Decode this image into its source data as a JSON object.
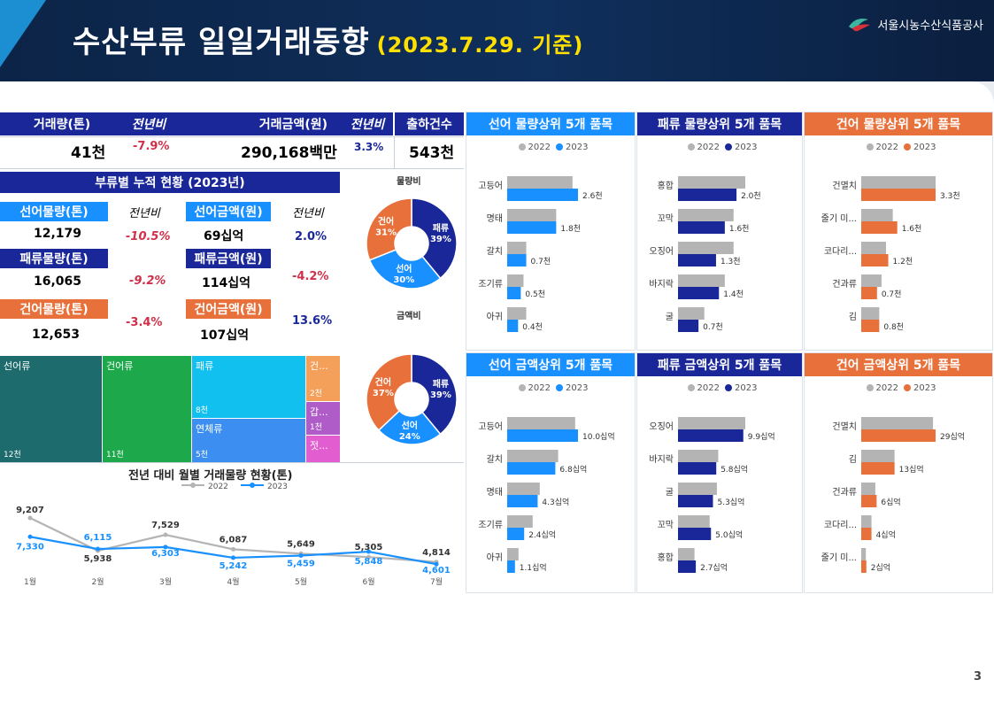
{
  "header": {
    "title": "수산부류 일일거래동향",
    "date": "(2023.7.29. 기준)",
    "org": "서울시농수산식품공사"
  },
  "summary": {
    "volume_label": "거래량(톤)",
    "volume_yoy_label": "전년비",
    "volume_value": "41천",
    "volume_yoy": "-7.9%",
    "amount_label": "거래금액(원)",
    "amount_yoy_label": "전년비",
    "amount_value": "290,168백만",
    "amount_yoy": "3.3%",
    "shipments_label": "출하건수",
    "shipments_value": "543천"
  },
  "cumulative": {
    "title": "부류별 누적 현황 (2023년)",
    "yoy_label": "전년비",
    "fresh_vol_label": "선어물량(톤)",
    "fresh_vol": "12,179",
    "fresh_vol_yoy": "-10.5%",
    "fresh_amt_label": "선어금액(원)",
    "fresh_amt": "69십억",
    "fresh_amt_yoy": "2.0%",
    "shell_vol_label": "패류물량(톤)",
    "shell_vol": "16,065",
    "shell_vol_yoy": "-9.2%",
    "shell_amt_label": "패류금액(원)",
    "shell_amt": "114십억",
    "shell_amt_yoy": "-4.2%",
    "dried_vol_label": "건어물량(톤)",
    "dried_vol": "12,653",
    "dried_vol_yoy": "-3.4%",
    "dried_amt_label": "건어금액(원)",
    "dried_amt": "107십억",
    "dried_amt_yoy": "13.6%"
  },
  "treemap": {
    "fresh_label": "선어류",
    "fresh_value": "12천",
    "dried_label": "건어류",
    "dried_value": "11천",
    "shell_label": "패류",
    "shell_value": "8천",
    "mollusk_label": "연체류",
    "mollusk_value": "5천",
    "c1_label": "건...",
    "c1_value": "2천",
    "c2_label": "갑...",
    "c2_value": "1천",
    "c3_label": "젓..."
  },
  "colors": {
    "navy": "#1a2799",
    "blue": "#1890ff",
    "orange": "#e8703a",
    "gray": "#b4b4b4",
    "teal": "#1e6b6e",
    "green": "#1ea84c",
    "cyan": "#12c0f0",
    "lightblue": "#3c8ef0",
    "peach": "#f5a05a",
    "purple": "#b05cc8",
    "pink": "#e25ed0"
  },
  "chart_data": [
    {
      "type": "pie",
      "title": "물량비",
      "labels": [
        "패류",
        "선어",
        "건어"
      ],
      "values": [
        39,
        30,
        31
      ],
      "value_labels": [
        "39%",
        "30%",
        "31%"
      ]
    },
    {
      "type": "pie",
      "title": "금액비",
      "labels": [
        "패류",
        "선어",
        "건어"
      ],
      "values": [
        39,
        24,
        37
      ],
      "value_labels": [
        "39%",
        "24%",
        "37%"
      ]
    },
    {
      "type": "line",
      "title": "전년 대비 월별 거래물량 현황(톤)",
      "categories": [
        "1월",
        "2월",
        "3월",
        "4월",
        "5월",
        "6월",
        "7월"
      ],
      "series": [
        {
          "name": "2022",
          "values": [
            9207,
            5938,
            7529,
            6087,
            5649,
            5305,
            4814
          ]
        },
        {
          "name": "2023",
          "values": [
            7330,
            6115,
            6303,
            5242,
            5459,
            5848,
            4601
          ]
        }
      ]
    },
    {
      "type": "bar",
      "title": "선어 물량상위 5개 품목",
      "legend": [
        "2022",
        "2023"
      ],
      "categories": [
        "고등어",
        "명태",
        "갈치",
        "조기류",
        "아귀"
      ],
      "series": [
        {
          "name": "2022",
          "values": [
            2.4,
            1.8,
            0.7,
            0.6,
            0.7
          ]
        },
        {
          "name": "2023",
          "values": [
            2.6,
            1.8,
            0.7,
            0.5,
            0.4
          ]
        }
      ],
      "value_labels": [
        "2.6천",
        "1.8천",
        "0.7천",
        "0.5천",
        "0.4천"
      ]
    },
    {
      "type": "bar",
      "title": "패류 물량상위 5개 품목",
      "legend": [
        "2022",
        "2023"
      ],
      "categories": [
        "홍합",
        "꼬막",
        "오징어",
        "바지락",
        "굴"
      ],
      "series": [
        {
          "name": "2022",
          "values": [
            2.3,
            1.9,
            1.9,
            1.6,
            0.9
          ]
        },
        {
          "name": "2023",
          "values": [
            2.0,
            1.6,
            1.3,
            1.4,
            0.7
          ]
        }
      ],
      "value_labels": [
        "2.0천",
        "1.6천",
        "1.3천",
        "1.4천",
        "0.7천"
      ]
    },
    {
      "type": "bar",
      "title": "건어 물량상위 5개 품목",
      "legend": [
        "2022",
        "2023"
      ],
      "categories": [
        "건멸치",
        "줄기 미...",
        "코다리...",
        "건과류",
        "김"
      ],
      "series": [
        {
          "name": "2022",
          "values": [
            3.3,
            1.4,
            1.1,
            0.9,
            0.8
          ]
        },
        {
          "name": "2023",
          "values": [
            3.3,
            1.6,
            1.2,
            0.7,
            0.8
          ]
        }
      ],
      "value_labels": [
        "3.3천",
        "1.6천",
        "1.2천",
        "0.7천",
        "0.8천"
      ]
    },
    {
      "type": "bar",
      "title": "선어 금액상위 5개 품목",
      "legend": [
        "2022",
        "2023"
      ],
      "categories": [
        "고등어",
        "갈치",
        "명태",
        "조기류",
        "아귀"
      ],
      "series": [
        {
          "name": "2022",
          "values": [
            9.6,
            7.2,
            4.6,
            3.6,
            1.6
          ]
        },
        {
          "name": "2023",
          "values": [
            10.0,
            6.8,
            4.3,
            2.4,
            1.1
          ]
        }
      ],
      "value_labels": [
        "10.0십억",
        "6.8십억",
        "4.3십억",
        "2.4십억",
        "1.1십억"
      ]
    },
    {
      "type": "bar",
      "title": "패류 금액상위 5개 품목",
      "legend": [
        "2022",
        "2023"
      ],
      "categories": [
        "오징어",
        "바지락",
        "굴",
        "꼬막",
        "홍합"
      ],
      "series": [
        {
          "name": "2022",
          "values": [
            10.2,
            6.1,
            5.9,
            4.8,
            2.5
          ]
        },
        {
          "name": "2023",
          "values": [
            9.9,
            5.8,
            5.3,
            5.0,
            2.7
          ]
        }
      ],
      "value_labels": [
        "9.9십억",
        "5.8십억",
        "5.3십억",
        "5.0십억",
        "2.7십억"
      ]
    },
    {
      "type": "bar",
      "title": "건어 금액상위 5개 품목",
      "legend": [
        "2022",
        "2023"
      ],
      "categories": [
        "건멸치",
        "김",
        "건과류",
        "코다리...",
        "줄기 미..."
      ],
      "series": [
        {
          "name": "2022",
          "values": [
            28,
            13,
            5.5,
            4,
            1.8
          ]
        },
        {
          "name": "2023",
          "values": [
            29,
            13,
            6,
            4,
            2
          ]
        }
      ],
      "value_labels": [
        "29십억",
        "13십억",
        "6십억",
        "4십억",
        "2십억"
      ]
    }
  ],
  "page_number": "3"
}
